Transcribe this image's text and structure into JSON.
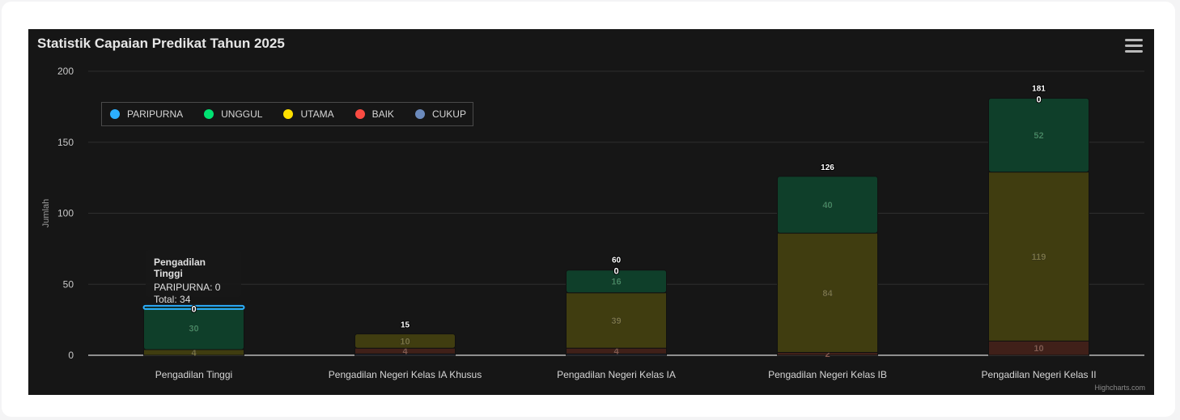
{
  "title": "Statistik Capaian Predikat Tahun 2025",
  "credits": "Highcharts.com",
  "tooltip": {
    "category": "Pengadilan Tinggi",
    "line1_label": "PARIPURNA",
    "line1_value": "0",
    "line2_label": "Total",
    "line2_value": "34"
  },
  "chart_data": {
    "type": "bar",
    "stacked": true,
    "title": "Statistik Capaian Predikat Tahun 2025",
    "ylabel": "Jumlah",
    "xlabel": "",
    "ylim": [
      0,
      200
    ],
    "yticks": [
      0,
      50,
      100,
      150,
      200
    ],
    "grid": true,
    "legend_position": "top-left",
    "categories": [
      "Pengadilan Tinggi",
      "Pengadilan Negeri Kelas IA Khusus",
      "Pengadilan Negeri Kelas IA",
      "Pengadilan Negeri Kelas IB",
      "Pengadilan Negeri Kelas II"
    ],
    "series": [
      {
        "name": "PARIPURNA",
        "color": "#2caffe",
        "values": [
          0,
          0,
          0,
          0,
          0
        ]
      },
      {
        "name": "UNGGUL",
        "color": "#00e272",
        "values": [
          30,
          0,
          16,
          40,
          52
        ]
      },
      {
        "name": "UTAMA",
        "color": "#fee000",
        "values": [
          4,
          10,
          39,
          84,
          119
        ]
      },
      {
        "name": "BAIK",
        "color": "#fa4b42",
        "values": [
          0,
          4,
          4,
          2,
          10
        ]
      },
      {
        "name": "CUKUP",
        "color": "#6b8abc",
        "values": [
          0,
          1,
          1,
          0,
          0
        ]
      }
    ],
    "totals": [
      34,
      15,
      60,
      126,
      181
    ]
  }
}
